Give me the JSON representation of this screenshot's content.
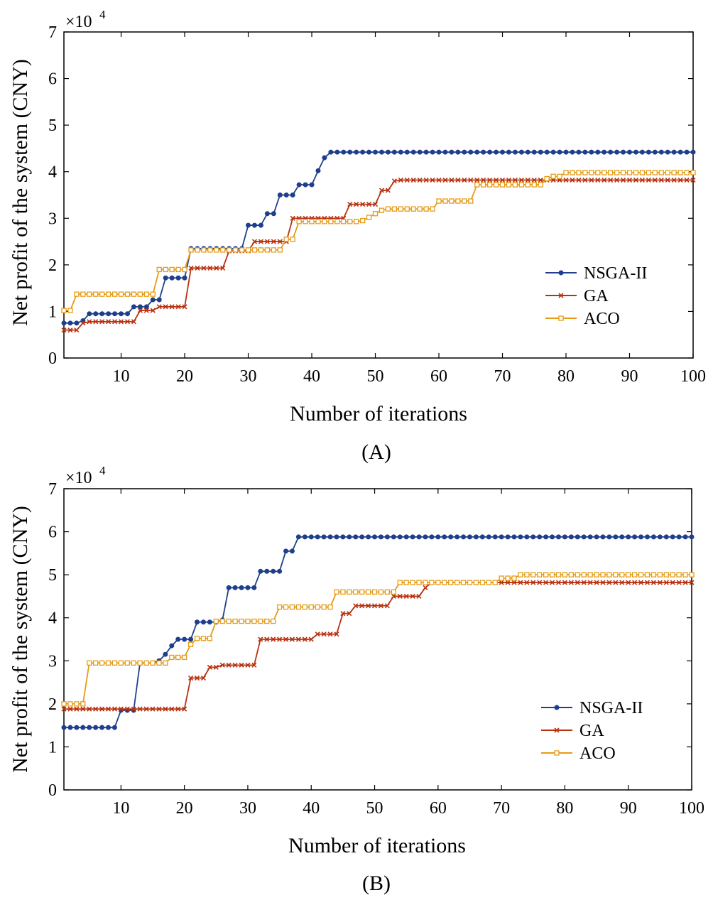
{
  "chart_data": [
    {
      "type": "line",
      "panel_label": "(A)",
      "xlabel": "Number of iterations",
      "ylabel": "Net profit of the system (CNY)",
      "y_multiplier": "×10",
      "y_multiplier_exp": "4",
      "xlim": [
        1,
        100
      ],
      "ylim": [
        0,
        7
      ],
      "xticks": [
        10,
        20,
        30,
        40,
        50,
        60,
        70,
        80,
        90,
        100
      ],
      "yticks": [
        0,
        1,
        2,
        3,
        4,
        5,
        6,
        7
      ],
      "legend_position": "lower-right",
      "series": [
        {
          "name": "NSGA-II",
          "color": "#1f3f8c",
          "marker": "dot",
          "steps": [
            [
              1,
              0.75
            ],
            [
              4,
              0.8
            ],
            [
              5,
              0.95
            ],
            [
              12,
              1.1
            ],
            [
              15,
              1.25
            ],
            [
              17,
              1.72
            ],
            [
              21,
              2.35
            ],
            [
              30,
              2.85
            ],
            [
              33,
              3.1
            ],
            [
              35,
              3.5
            ],
            [
              38,
              3.72
            ],
            [
              41,
              4.02
            ],
            [
              42,
              4.3
            ],
            [
              43,
              4.42
            ],
            [
              100,
              4.42
            ]
          ]
        },
        {
          "name": "GA",
          "color": "#b83210",
          "marker": "x",
          "steps": [
            [
              1,
              0.6
            ],
            [
              4,
              0.75
            ],
            [
              5,
              0.78
            ],
            [
              13,
              1.02
            ],
            [
              16,
              1.1
            ],
            [
              21,
              1.93
            ],
            [
              27,
              2.3
            ],
            [
              31,
              2.5
            ],
            [
              37,
              3.0
            ],
            [
              46,
              3.3
            ],
            [
              51,
              3.6
            ],
            [
              53,
              3.8
            ],
            [
              54,
              3.82
            ],
            [
              100,
              3.82
            ]
          ]
        },
        {
          "name": "ACO",
          "color": "#e59b16",
          "marker": "square",
          "steps": [
            [
              1,
              1.02
            ],
            [
              3,
              1.37
            ],
            [
              16,
              1.9
            ],
            [
              21,
              2.32
            ],
            [
              36,
              2.55
            ],
            [
              38,
              2.93
            ],
            [
              48,
              2.95
            ],
            [
              49,
              3.02
            ],
            [
              50,
              3.1
            ],
            [
              51,
              3.17
            ],
            [
              52,
              3.2
            ],
            [
              60,
              3.37
            ],
            [
              66,
              3.72
            ],
            [
              77,
              3.85
            ],
            [
              78,
              3.9
            ],
            [
              80,
              3.98
            ],
            [
              100,
              3.98
            ]
          ]
        }
      ]
    },
    {
      "type": "line",
      "panel_label": "(B)",
      "xlabel": "Number of iterations",
      "ylabel": "Net profit of the system (CNY)",
      "y_multiplier": "×10",
      "y_multiplier_exp": "4",
      "xlim": [
        1,
        100
      ],
      "ylim": [
        0,
        7
      ],
      "xticks": [
        10,
        20,
        30,
        40,
        50,
        60,
        70,
        80,
        90,
        100
      ],
      "yticks": [
        0,
        1,
        2,
        3,
        4,
        5,
        6,
        7
      ],
      "legend_position": "lower-right",
      "series": [
        {
          "name": "NSGA-II",
          "color": "#1f3f8c",
          "marker": "dot",
          "steps": [
            [
              1,
              1.45
            ],
            [
              10,
              1.85
            ],
            [
              13,
              2.95
            ],
            [
              16,
              3.0
            ],
            [
              17,
              3.15
            ],
            [
              18,
              3.35
            ],
            [
              19,
              3.5
            ],
            [
              22,
              3.9
            ],
            [
              26,
              3.95
            ],
            [
              27,
              4.7
            ],
            [
              32,
              5.08
            ],
            [
              36,
              5.55
            ],
            [
              38,
              5.88
            ],
            [
              100,
              5.88
            ]
          ]
        },
        {
          "name": "GA",
          "color": "#b83210",
          "marker": "x",
          "steps": [
            [
              1,
              1.88
            ],
            [
              21,
              2.6
            ],
            [
              24,
              2.85
            ],
            [
              26,
              2.9
            ],
            [
              32,
              3.5
            ],
            [
              41,
              3.62
            ],
            [
              45,
              4.1
            ],
            [
              47,
              4.28
            ],
            [
              53,
              4.5
            ],
            [
              58,
              4.7
            ],
            [
              59,
              4.82
            ],
            [
              100,
              4.82
            ]
          ]
        },
        {
          "name": "ACO",
          "color": "#e59b16",
          "marker": "square",
          "steps": [
            [
              1,
              2.0
            ],
            [
              5,
              2.95
            ],
            [
              18,
              3.08
            ],
            [
              21,
              3.38
            ],
            [
              22,
              3.52
            ],
            [
              25,
              3.92
            ],
            [
              35,
              4.25
            ],
            [
              44,
              4.6
            ],
            [
              54,
              4.82
            ],
            [
              70,
              4.92
            ],
            [
              73,
              5.0
            ],
            [
              100,
              5.0
            ]
          ]
        }
      ]
    }
  ]
}
